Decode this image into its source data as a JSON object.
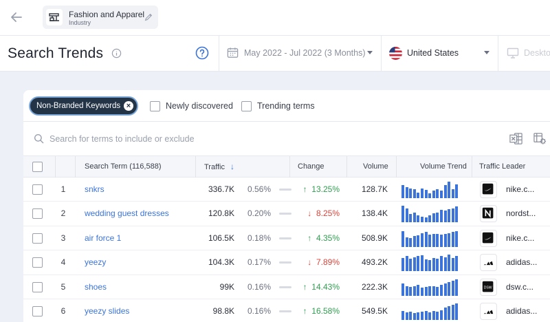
{
  "industry": {
    "name": "Fashion and Apparel",
    "type": "Industry"
  },
  "page": {
    "title": "Search Trends"
  },
  "date_range": {
    "label": "May 2022 - Jul 2022 (3 Months)"
  },
  "country": {
    "label": "United States"
  },
  "device": {
    "label": "Desktop"
  },
  "filters": {
    "pill_label": "Non-Branded Keywords",
    "newly_discovered": "Newly discovered",
    "trending_terms": "Trending terms"
  },
  "search": {
    "placeholder": "Search for terms to include or exclude"
  },
  "columns": {
    "term": "Search Term (116,588)",
    "traffic": "Traffic",
    "change": "Change",
    "volume": "Volume",
    "trend": "Volume Trend",
    "leader": "Traffic Leader"
  },
  "rows": [
    {
      "rank": "1",
      "term": "snkrs",
      "traffic": "336.7K",
      "share": "0.56%",
      "change": "13.25%",
      "direction": "up",
      "volume": "128.7K",
      "leader": "nike.c...",
      "leader_logo": "nike-logo",
      "trend": [
        0.8,
        0.65,
        0.6,
        0.55,
        0.35,
        0.6,
        0.5,
        0.3,
        0.45,
        0.55,
        0.45,
        0.8,
        1.0,
        0.55,
        0.85
      ]
    },
    {
      "rank": "2",
      "term": "wedding guest dresses",
      "traffic": "120.8K",
      "share": "0.20%",
      "change": "8.25%",
      "direction": "down",
      "volume": "138.4K",
      "leader": "nordst...",
      "leader_logo": "nordstrom-logo",
      "trend": [
        1.0,
        0.85,
        0.5,
        0.6,
        0.4,
        0.35,
        0.3,
        0.4,
        0.55,
        0.6,
        0.75,
        0.7,
        0.8,
        0.85,
        0.95
      ]
    },
    {
      "rank": "3",
      "term": "air force 1",
      "traffic": "106.5K",
      "share": "0.18%",
      "change": "4.35%",
      "direction": "up",
      "volume": "508.9K",
      "leader": "nike.c...",
      "leader_logo": "nike-logo",
      "trend": [
        0.95,
        0.6,
        0.55,
        0.65,
        0.7,
        0.85,
        0.9,
        0.75,
        0.8,
        0.8,
        0.75,
        0.8,
        0.85,
        0.9,
        0.95
      ]
    },
    {
      "rank": "4",
      "term": "yeezy",
      "traffic": "104.3K",
      "share": "0.17%",
      "change": "7.89%",
      "direction": "down",
      "volume": "493.2K",
      "leader": "adidas...",
      "leader_logo": "adidas-logo",
      "trend": [
        0.8,
        0.9,
        0.75,
        0.85,
        0.9,
        0.95,
        0.7,
        0.65,
        0.8,
        0.75,
        0.9,
        0.85,
        1.0,
        0.8,
        0.9
      ]
    },
    {
      "rank": "5",
      "term": "shoes",
      "traffic": "99K",
      "share": "0.16%",
      "change": "14.43%",
      "direction": "up",
      "volume": "222.3K",
      "leader": "dsw.c...",
      "leader_logo": "dsw-logo",
      "trend": [
        0.75,
        0.6,
        0.55,
        0.6,
        0.65,
        0.5,
        0.55,
        0.6,
        0.6,
        0.55,
        0.65,
        0.75,
        0.85,
        0.9,
        1.0
      ]
    },
    {
      "rank": "6",
      "term": "yeezy slides",
      "traffic": "98.8K",
      "share": "0.16%",
      "change": "16.58%",
      "direction": "up",
      "volume": "549.5K",
      "leader": "adidas...",
      "leader_logo": "adidas-logo",
      "trend": [
        0.55,
        0.45,
        0.5,
        0.4,
        0.45,
        0.5,
        0.55,
        0.45,
        0.55,
        0.5,
        0.6,
        0.75,
        0.85,
        0.9,
        1.0
      ]
    }
  ]
}
